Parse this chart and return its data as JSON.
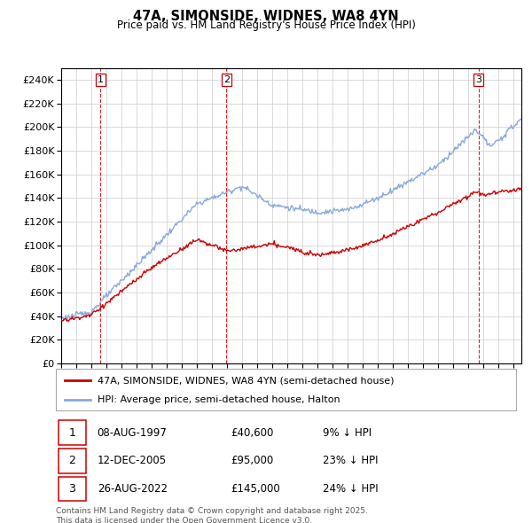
{
  "title": "47A, SIMONSIDE, WIDNES, WA8 4YN",
  "subtitle": "Price paid vs. HM Land Registry's House Price Index (HPI)",
  "ylim": [
    0,
    250000
  ],
  "yticks": [
    0,
    20000,
    40000,
    60000,
    80000,
    100000,
    120000,
    140000,
    160000,
    180000,
    200000,
    220000,
    240000
  ],
  "legend_line1": "47A, SIMONSIDE, WIDNES, WA8 4YN (semi-detached house)",
  "legend_line2": "HPI: Average price, semi-detached house, Halton",
  "sale_color": "#cc0000",
  "hpi_color": "#88aadd",
  "sale_points": [
    {
      "label": "1",
      "date": "08-AUG-1997",
      "price": 40600,
      "pct": "9% ↓ HPI"
    },
    {
      "label": "2",
      "date": "12-DEC-2005",
      "price": 95000,
      "pct": "23% ↓ HPI"
    },
    {
      "label": "3",
      "date": "26-AUG-2022",
      "price": 145000,
      "pct": "24% ↓ HPI"
    }
  ],
  "footnote": "Contains HM Land Registry data © Crown copyright and database right 2025.\nThis data is licensed under the Open Government Licence v3.0.",
  "vline_color": "#cc0000",
  "background_color": "#ffffff",
  "grid_color": "#cccccc",
  "sale_dates_dec": [
    1997.6,
    2005.95,
    2022.65
  ]
}
